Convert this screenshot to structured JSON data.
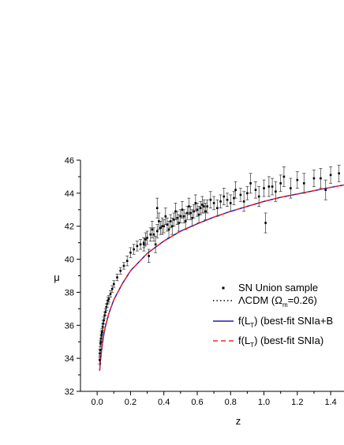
{
  "chart_data": {
    "type": "scatter",
    "xlabel": "z",
    "ylabel": "μ",
    "xlim": [
      -0.1,
      1.48
    ],
    "ylim": [
      32,
      46
    ],
    "x_ticks": [
      "0.0",
      "0.2",
      "0.4",
      "0.6",
      "0.8",
      "1.0",
      "1.2",
      "1.4"
    ],
    "y_ticks": [
      "32",
      "34",
      "36",
      "38",
      "40",
      "42",
      "44",
      "46"
    ],
    "legend_position": "center-right",
    "legend": [
      {
        "id": "data",
        "style": "marker",
        "main": "SN Union sample",
        "sub": "",
        "tail": ""
      },
      {
        "id": "lcdm",
        "style": "dotted",
        "main": "ΛCDM (Ω",
        "sub": "m",
        "tail": "=0.26)"
      },
      {
        "id": "fit1",
        "style": "solid",
        "main": "f(L",
        "sub": "T",
        "tail": ")  (best-fit SNIa+B"
      },
      {
        "id": "fit2",
        "style": "dashed",
        "main": "f(L",
        "sub": "T",
        "tail": ")  (best-fit SNIa)"
      }
    ],
    "series": [
      {
        "name": "SN Union sample",
        "kind": "points_with_errorbars",
        "color": "#000000",
        "points": [
          [
            0.015,
            33.9,
            0.25
          ],
          [
            0.016,
            34.3,
            0.25
          ],
          [
            0.018,
            34.5,
            0.2
          ],
          [
            0.02,
            34.9,
            0.2
          ],
          [
            0.022,
            35.0,
            0.2
          ],
          [
            0.024,
            35.2,
            0.2
          ],
          [
            0.026,
            35.4,
            0.2
          ],
          [
            0.028,
            35.5,
            0.2
          ],
          [
            0.03,
            35.6,
            0.2
          ],
          [
            0.033,
            35.9,
            0.2
          ],
          [
            0.036,
            36.1,
            0.2
          ],
          [
            0.04,
            36.3,
            0.2
          ],
          [
            0.045,
            36.6,
            0.2
          ],
          [
            0.05,
            36.8,
            0.2
          ],
          [
            0.055,
            37.1,
            0.2
          ],
          [
            0.06,
            37.3,
            0.2
          ],
          [
            0.065,
            37.5,
            0.2
          ],
          [
            0.07,
            37.6,
            0.2
          ],
          [
            0.08,
            37.9,
            0.2
          ],
          [
            0.09,
            38.2,
            0.2
          ],
          [
            0.1,
            38.5,
            0.2
          ],
          [
            0.12,
            38.9,
            0.2
          ],
          [
            0.14,
            39.3,
            0.2
          ],
          [
            0.16,
            39.6,
            0.2
          ],
          [
            0.18,
            39.9,
            0.3
          ],
          [
            0.2,
            40.4,
            0.3
          ],
          [
            0.22,
            40.6,
            0.3
          ],
          [
            0.24,
            40.8,
            0.3
          ],
          [
            0.26,
            40.9,
            0.3
          ],
          [
            0.28,
            41.0,
            0.3
          ],
          [
            0.3,
            41.3,
            0.4
          ],
          [
            0.31,
            40.2,
            0.4
          ],
          [
            0.32,
            41.5,
            0.4
          ],
          [
            0.34,
            41.5,
            0.4
          ],
          [
            0.36,
            41.7,
            0.4
          ],
          [
            0.38,
            41.9,
            0.4
          ],
          [
            0.4,
            42.0,
            0.4
          ],
          [
            0.42,
            42.1,
            0.4
          ],
          [
            0.44,
            42.3,
            0.4
          ],
          [
            0.46,
            42.4,
            0.4
          ],
          [
            0.48,
            42.5,
            0.4
          ],
          [
            0.5,
            42.6,
            0.4
          ],
          [
            0.52,
            42.6,
            0.4
          ],
          [
            0.54,
            42.8,
            0.4
          ],
          [
            0.56,
            42.8,
            0.4
          ],
          [
            0.58,
            42.9,
            0.4
          ],
          [
            0.6,
            43.0,
            0.4
          ],
          [
            0.62,
            43.1,
            0.4
          ],
          [
            0.64,
            43.2,
            0.4
          ],
          [
            0.66,
            43.2,
            0.4
          ],
          [
            0.7,
            43.4,
            0.4
          ],
          [
            0.74,
            43.5,
            0.4
          ],
          [
            0.78,
            43.6,
            0.4
          ],
          [
            0.82,
            43.7,
            0.4
          ],
          [
            0.86,
            43.9,
            0.4
          ],
          [
            0.9,
            44.0,
            0.4
          ],
          [
            0.95,
            44.2,
            0.5
          ],
          [
            1.0,
            44.3,
            0.5
          ],
          [
            1.05,
            44.4,
            0.5
          ],
          [
            1.1,
            44.6,
            0.5
          ],
          [
            1.2,
            44.8,
            0.5
          ],
          [
            1.3,
            44.9,
            0.5
          ],
          [
            1.4,
            45.1,
            0.5
          ],
          [
            0.36,
            43.1,
            0.6
          ],
          [
            0.28,
            40.9,
            0.4
          ],
          [
            0.33,
            41.8,
            0.5
          ],
          [
            0.37,
            42.3,
            0.5
          ],
          [
            0.41,
            42.6,
            0.5
          ],
          [
            0.43,
            41.8,
            0.5
          ],
          [
            0.45,
            42.0,
            0.5
          ],
          [
            0.47,
            42.9,
            0.5
          ],
          [
            0.49,
            42.2,
            0.5
          ],
          [
            0.51,
            43.0,
            0.5
          ],
          [
            0.53,
            42.3,
            0.5
          ],
          [
            0.55,
            43.2,
            0.5
          ],
          [
            0.57,
            42.5,
            0.5
          ],
          [
            0.59,
            43.4,
            0.5
          ],
          [
            0.61,
            42.7,
            0.5
          ],
          [
            0.63,
            43.3,
            0.5
          ],
          [
            0.65,
            42.9,
            0.5
          ],
          [
            0.68,
            43.6,
            0.5
          ],
          [
            0.72,
            43.1,
            0.5
          ],
          [
            0.76,
            43.8,
            0.5
          ],
          [
            0.8,
            43.4,
            0.5
          ],
          [
            0.83,
            44.2,
            0.5
          ],
          [
            0.88,
            43.5,
            0.6
          ],
          [
            0.92,
            44.6,
            0.6
          ],
          [
            0.97,
            43.8,
            0.6
          ],
          [
            1.01,
            42.2,
            0.6
          ],
          [
            1.03,
            44.4,
            0.6
          ],
          [
            1.07,
            44.1,
            0.6
          ],
          [
            1.12,
            45.0,
            0.6
          ],
          [
            1.16,
            44.3,
            0.6
          ],
          [
            1.24,
            44.6,
            0.6
          ],
          [
            1.34,
            44.9,
            0.6
          ],
          [
            1.37,
            44.2,
            0.6
          ],
          [
            1.45,
            45.2,
            0.5
          ],
          [
            0.29,
            41.2,
            0.4
          ],
          [
            0.35,
            40.9,
            0.5
          ],
          [
            0.39,
            42.0,
            0.5
          ]
        ]
      },
      {
        "name": "ΛCDM (Ωm=0.26)",
        "kind": "curve",
        "style": "dotted",
        "color": "#000000",
        "x": [
          0.015,
          0.02,
          0.03,
          0.04,
          0.05,
          0.07,
          0.1,
          0.15,
          0.2,
          0.3,
          0.4,
          0.5,
          0.6,
          0.7,
          0.8,
          0.9,
          1.0,
          1.1,
          1.2,
          1.3,
          1.4,
          1.48
        ],
        "y": [
          33.25,
          33.9,
          34.8,
          35.45,
          35.95,
          36.7,
          37.55,
          38.5,
          39.3,
          40.35,
          41.1,
          41.7,
          42.15,
          42.55,
          42.9,
          43.2,
          43.5,
          43.75,
          43.95,
          44.15,
          44.35,
          44.5
        ]
      },
      {
        "name": "f(LT) (best-fit SNIa+B",
        "kind": "curve",
        "style": "solid",
        "color": "#1f1fb4",
        "x": [
          0.015,
          0.02,
          0.03,
          0.04,
          0.05,
          0.07,
          0.1,
          0.15,
          0.2,
          0.3,
          0.4,
          0.5,
          0.6,
          0.7,
          0.8,
          0.9,
          1.0,
          1.1,
          1.2,
          1.3,
          1.4,
          1.48
        ],
        "y": [
          33.25,
          33.9,
          34.8,
          35.45,
          35.95,
          36.7,
          37.55,
          38.5,
          39.3,
          40.35,
          41.1,
          41.7,
          42.15,
          42.55,
          42.9,
          43.2,
          43.5,
          43.75,
          43.95,
          44.15,
          44.35,
          44.5
        ]
      },
      {
        "name": "f(LT) (best-fit SNIa)",
        "kind": "curve",
        "style": "dashed",
        "color": "#ff2020",
        "x": [
          0.015,
          0.02,
          0.03,
          0.04,
          0.05,
          0.07,
          0.1,
          0.15,
          0.2,
          0.3,
          0.4,
          0.5,
          0.6,
          0.7,
          0.8,
          0.9,
          1.0,
          1.1,
          1.2,
          1.3,
          1.4,
          1.48
        ],
        "y": [
          33.25,
          33.9,
          34.8,
          35.45,
          35.95,
          36.7,
          37.55,
          38.5,
          39.3,
          40.35,
          41.1,
          41.7,
          42.15,
          42.55,
          42.9,
          43.2,
          43.5,
          43.75,
          43.95,
          44.15,
          44.35,
          44.5
        ]
      }
    ]
  }
}
